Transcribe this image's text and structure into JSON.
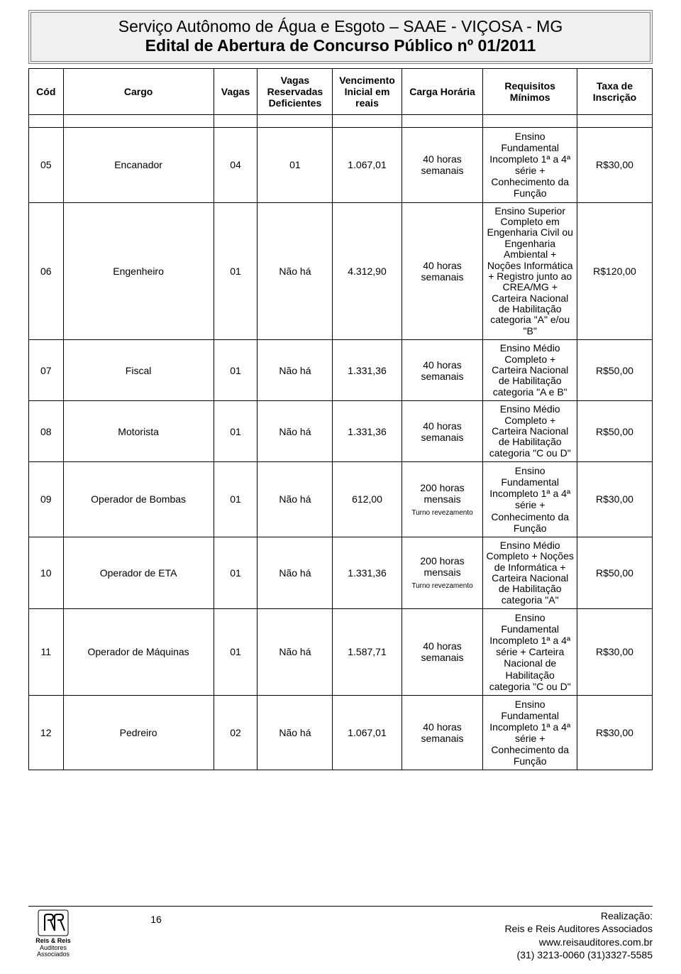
{
  "header": {
    "line1": "Serviço Autônomo de Água e Esgoto – SAAE - VIÇOSA - MG",
    "line2": "Edital de Abertura de Concurso Público nº 01/2011"
  },
  "table": {
    "columns": [
      "Cód",
      "Cargo",
      "Vagas",
      "Vagas Reservadas Deficientes",
      "Vencimento Inicial em reais",
      "Carga Horária",
      "Requisitos Mínimos",
      "Taxa de Inscrição"
    ],
    "rows": [
      {
        "cod": "05",
        "cargo": "Encanador",
        "vagas": "04",
        "res": "01",
        "venc": "1.067,01",
        "carga": "40 horas semanais",
        "carga_sub": "",
        "req": "Ensino Fundamental Incompleto 1ª a 4ª série + Conhecimento da Função",
        "taxa": "R$30,00",
        "req_small": false
      },
      {
        "cod": "06",
        "cargo": "Engenheiro",
        "vagas": "01",
        "res": "Não há",
        "venc": "4.312,90",
        "carga": "40 horas semanais",
        "carga_sub": "",
        "req": "Ensino Superior Completo em Engenharia Civil ou Engenharia Ambiental + Noções Informática + Registro junto ao CREA/MG + Carteira Nacional de Habilitação categoria \"A\" e/ou \"B\"",
        "taxa": "R$120,00",
        "req_small": true
      },
      {
        "cod": "07",
        "cargo": "Fiscal",
        "vagas": "01",
        "res": "Não há",
        "venc": "1.331,36",
        "carga": "40 horas semanais",
        "carga_sub": "",
        "req": "Ensino Médio Completo + Carteira Nacional de Habilitação categoria \"A e B\"",
        "taxa": "R$50,00",
        "req_small": true
      },
      {
        "cod": "08",
        "cargo": "Motorista",
        "vagas": "01",
        "res": "Não há",
        "venc": "1.331,36",
        "carga": "40 horas semanais",
        "carga_sub": "",
        "req": "Ensino Médio Completo + Carteira Nacional de Habilitação categoria \"C ou D\"",
        "taxa": "R$50,00",
        "req_small": true
      },
      {
        "cod": "09",
        "cargo": "Operador de Bombas",
        "vagas": "01",
        "res": "Não há",
        "venc": "612,00",
        "carga": "200 horas mensais",
        "carga_sub": "Turno revezamento",
        "req": "Ensino Fundamental Incompleto 1ª a 4ª série + Conhecimento da Função",
        "taxa": "R$30,00",
        "req_small": false
      },
      {
        "cod": "10",
        "cargo": "Operador de ETA",
        "vagas": "01",
        "res": "Não há",
        "venc": "1.331,36",
        "carga": "200 horas mensais",
        "carga_sub": "Turno revezamento",
        "req": "Ensino Médio Completo + Noções de Informática + Carteira Nacional de Habilitação categoria \"A\"",
        "taxa": "R$50,00",
        "req_small": true
      },
      {
        "cod": "11",
        "cargo": "Operador de Máquinas",
        "vagas": "01",
        "res": "Não há",
        "venc": "1.587,71",
        "carga": "40 horas semanais",
        "carga_sub": "",
        "req": "Ensino Fundamental Incompleto 1ª a 4ª série + Carteira Nacional de Habilitação categoria \"C ou D\"",
        "taxa": "R$30,00",
        "req_small": false
      },
      {
        "cod": "12",
        "cargo": "Pedreiro",
        "vagas": "02",
        "res": "Não há",
        "venc": "1.067,01",
        "carga": "40 horas semanais",
        "carga_sub": "",
        "req": "Ensino Fundamental Incompleto 1ª a 4ª série + Conhecimento da Função",
        "taxa": "R$30,00",
        "req_small": false
      }
    ]
  },
  "footer": {
    "logo_name": "Reis & Reis",
    "logo_sub": "Auditores Associados",
    "page_number": "16",
    "realizacao_label": "Realização:",
    "company": "Reis e Reis Auditores Associados",
    "site": "www.reisauditores.com.br",
    "phones": "(31) 3213-0060 (31)3327-5585"
  }
}
